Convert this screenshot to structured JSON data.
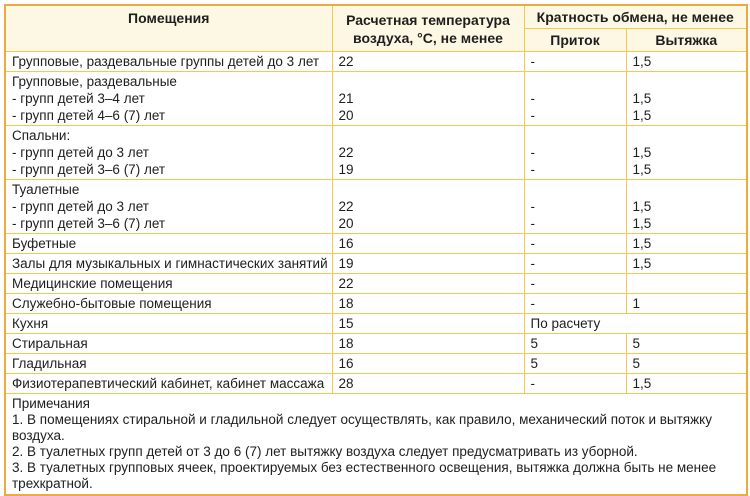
{
  "table": {
    "headers": {
      "rooms": "Помещения",
      "temperature": "Расчетная температура воздуха, °С, не менее",
      "exchange": "Кратность обмена, не менее",
      "inflow": "Приток",
      "exhaust": "Вытяжка"
    },
    "rows": [
      {
        "room": [
          "Групповые, раздевальные группы детей до 3 лет"
        ],
        "temp": [
          "22"
        ],
        "inflow": [
          "-"
        ],
        "exhaust": [
          "1,5"
        ]
      },
      {
        "room": [
          "Групповые, раздевальные",
          "- групп детей 3–4 лет",
          "- групп детей 4–6 (7) лет"
        ],
        "temp": [
          "",
          "21",
          "20"
        ],
        "inflow": [
          "",
          "-",
          "-"
        ],
        "exhaust": [
          "",
          "1,5",
          "1,5"
        ]
      },
      {
        "room": [
          "Спальни:",
          "- групп детей до 3 лет",
          "- групп детей 3–6 (7) лет"
        ],
        "temp": [
          "",
          "22",
          "19"
        ],
        "inflow": [
          "",
          "-",
          "-"
        ],
        "exhaust": [
          "",
          "1,5",
          "1,5"
        ]
      },
      {
        "room": [
          "Туалетные",
          "- групп детей до 3 лет",
          "- групп детей 3–6 (7) лет"
        ],
        "temp": [
          "",
          "22",
          "20"
        ],
        "inflow": [
          "",
          "-",
          "-"
        ],
        "exhaust": [
          "",
          "1,5",
          "1,5"
        ]
      },
      {
        "room": [
          "Буфетные"
        ],
        "temp": [
          "16"
        ],
        "inflow": [
          "-"
        ],
        "exhaust": [
          "1,5"
        ]
      },
      {
        "room": [
          "Залы для музыкальных и гимнастических занятий"
        ],
        "temp": [
          "19"
        ],
        "inflow": [
          "-"
        ],
        "exhaust": [
          "1,5"
        ]
      },
      {
        "room": [
          "Медицинские помещения"
        ],
        "temp": [
          "22"
        ],
        "inflow": [
          "-"
        ],
        "exhaust": [
          ""
        ]
      },
      {
        "room": [
          "Служебно-бытовые помещения"
        ],
        "temp": [
          "18"
        ],
        "inflow": [
          "-"
        ],
        "exhaust": [
          "1"
        ]
      },
      {
        "room": [
          "Кухня"
        ],
        "temp": [
          "15"
        ],
        "merged": "По расчету"
      },
      {
        "room": [
          "Стиральная"
        ],
        "temp": [
          "18"
        ],
        "inflow": [
          "5"
        ],
        "exhaust": [
          "5"
        ]
      },
      {
        "room": [
          "Гладильная"
        ],
        "temp": [
          "16"
        ],
        "inflow": [
          "5"
        ],
        "exhaust": [
          "5"
        ]
      },
      {
        "room": [
          "Физиотерапевтический кабинет, кабинет массажа"
        ],
        "temp": [
          "28"
        ],
        "inflow": [
          "-"
        ],
        "exhaust": [
          "1,5"
        ]
      }
    ],
    "notes": {
      "title": "Примечания",
      "items": [
        "1. В помещениях стиральной и гладильной следует осуществлять, как правило, механический поток и вытяжку воздуха.",
        "2. В туалетных групп детей от 3 до 6 (7) лет вытяжку воздуха следует предусматривать из уборной.",
        "3. В туалетных групповых ячеек, проектируемых без естественного освещения, вытяжка должна быть не менее трехкратной."
      ]
    }
  },
  "colors": {
    "border_outer": "#EFA93C",
    "border_inner": "#F6C94E",
    "header_bg": "#FDF8E3",
    "text": "#1E1E1E"
  }
}
